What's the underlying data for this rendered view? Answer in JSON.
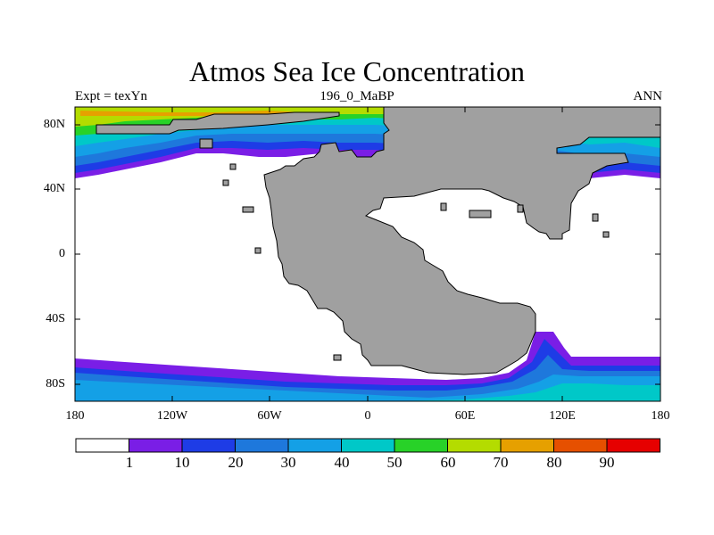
{
  "map": {
    "title": "Atmos Sea Ice Concentration",
    "subtitle_left": "Expt = texYn",
    "subtitle_center": "196_0_MaBP",
    "subtitle_right": "ANN",
    "lat_labels": [
      "80N",
      "40N",
      "0",
      "40S",
      "80S"
    ],
    "lon_labels": [
      "180",
      "120W",
      "60W",
      "0",
      "60E",
      "120E",
      "180"
    ],
    "land_color": "#a0a0a0",
    "ocean_color": "#ffffff"
  },
  "colorbar": {
    "labels": [
      "1",
      "10",
      "20",
      "30",
      "40",
      "50",
      "60",
      "70",
      "80",
      "90"
    ],
    "colors": [
      "#ffffff",
      "#7a1ee6",
      "#1e3ce6",
      "#1e78dc",
      "#14a0e6",
      "#00c8c8",
      "#28d228",
      "#b4dc00",
      "#e6a000",
      "#e65000",
      "#e60000"
    ]
  }
}
